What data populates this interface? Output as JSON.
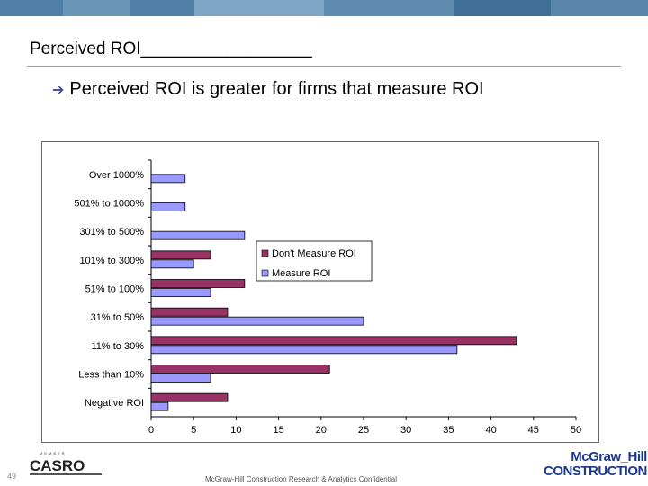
{
  "header": {
    "band_colors": [
      "#4f7fa6",
      "#6a96b8",
      "#4f7fa6",
      "#7ea6c4",
      "#5f8bb0",
      "#3f6e96",
      "#5a86ad"
    ]
  },
  "slide": {
    "title": "Perceived ROI__________________",
    "bullet": "Perceived ROI is greater for firms that measure ROI"
  },
  "chart_data": {
    "type": "bar",
    "orientation": "horizontal",
    "categories": [
      "Negative ROI",
      "Less than 10%",
      "11% to 30%",
      "31% to 50%",
      "51% to 100%",
      "101% to 300%",
      "301% to 500%",
      "501% to 1000%",
      "Over 1000%"
    ],
    "series": [
      {
        "name": "Don't Measure ROI",
        "color": "#993366",
        "values": [
          9,
          21,
          43,
          9,
          11,
          7,
          0,
          0,
          0
        ]
      },
      {
        "name": "Measure ROI",
        "color": "#9999ff",
        "values": [
          2,
          7,
          36,
          25,
          7,
          5,
          11,
          4,
          4
        ]
      }
    ],
    "xlim": [
      0,
      50
    ],
    "xticks": [
      "0",
      "5",
      "10",
      "15",
      "20",
      "25",
      "30",
      "35",
      "40",
      "45",
      "50"
    ],
    "grid": false,
    "legend": "right"
  },
  "footer": {
    "page_number": "49",
    "confidential": "McGraw-Hill Construction Research & Analytics Confidential",
    "casro_logo": "CASRO",
    "mh_logo_line1": "McGraw_Hill",
    "mh_logo_line2": "CONSTRUCTION"
  }
}
